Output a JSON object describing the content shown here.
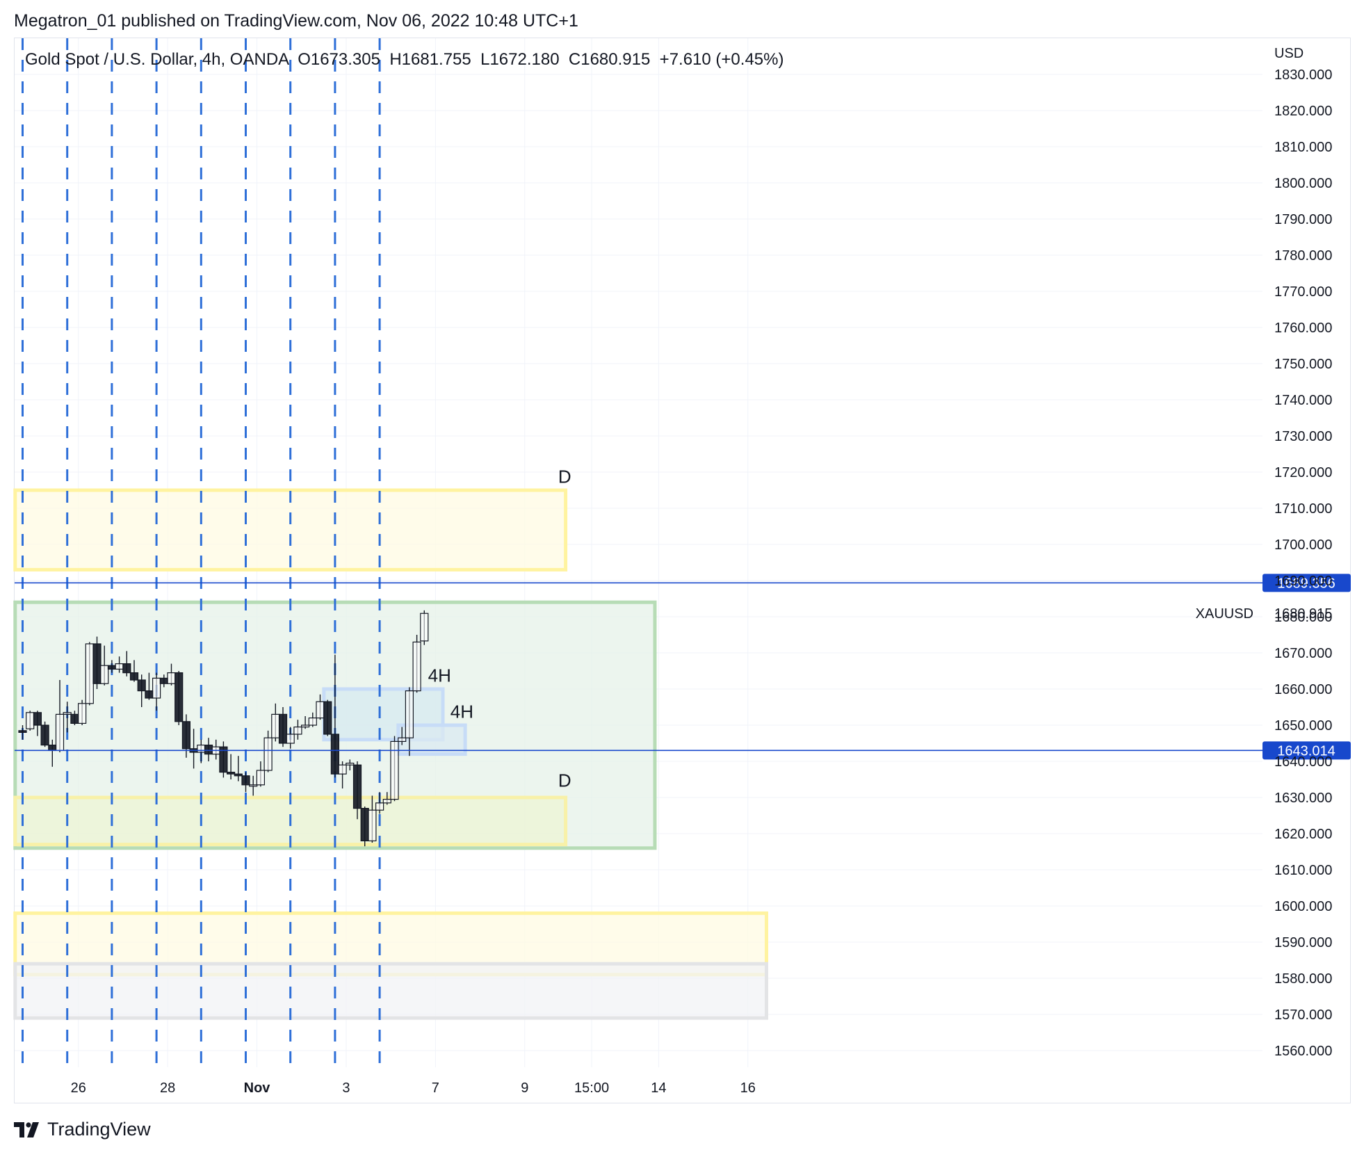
{
  "header": {
    "publisher": "Megatron_01 published on TradingView.com, Nov 06, 2022 10:48 UTC+1"
  },
  "legend": {
    "symbol": "Gold Spot / U.S. Dollar, 4h, OANDA",
    "open": "O1673.305",
    "high": "H1681.755",
    "low": "L1672.180",
    "close": "C1680.915",
    "change": "+7.610 (+0.45%)"
  },
  "footer": {
    "brand": "TradingView"
  },
  "chart_data": {
    "type": "candlestick",
    "currency": "USD",
    "ylim": [
      1555,
      1833
    ],
    "y_ticks": [
      "1830.000",
      "1820.000",
      "1810.000",
      "1800.000",
      "1790.000",
      "1780.000",
      "1770.000",
      "1760.000",
      "1750.000",
      "1740.000",
      "1730.000",
      "1720.000",
      "1710.000",
      "1700.000",
      "1690.000",
      "1680.000",
      "1670.000",
      "1660.000",
      "1650.000",
      "1640.000",
      "1630.000",
      "1620.000",
      "1610.000",
      "1600.000",
      "1590.000",
      "1580.000",
      "1570.000",
      "1560.000"
    ],
    "x_ticks": [
      {
        "label": "26",
        "bar": 7.5,
        "bold": false
      },
      {
        "label": "28",
        "bar": 19.5,
        "bold": false
      },
      {
        "label": "Nov",
        "bar": 31.5,
        "bold": true
      },
      {
        "label": "3",
        "bar": 43.5,
        "bold": false
      },
      {
        "label": "7",
        "bar": 55.5,
        "bold": false
      },
      {
        "label": "9",
        "bar": 67.5,
        "bold": false
      },
      {
        "label": "15:00",
        "bar": 76.5,
        "bold": false
      },
      {
        "label": "14",
        "bar": 85.5,
        "bold": false
      },
      {
        "label": "16",
        "bar": 97.5,
        "bold": false
      }
    ],
    "vertical_dashed_lines_at_bar": [
      0,
      6,
      12,
      18,
      24,
      30,
      36,
      42,
      48
    ],
    "price_lines": [
      {
        "value": 1689.356,
        "label": "1689.356",
        "color": "#1848cc"
      },
      {
        "value": 1643.014,
        "label": "1643.014",
        "color": "#1848cc"
      }
    ],
    "last_price": {
      "value": 1680.915,
      "label": "1680.915",
      "symbol": "XAUUSD"
    },
    "zones": [
      {
        "kind": "supply-D",
        "from_bar": -1,
        "to_bar": 73,
        "top": 1715,
        "bottom": 1693,
        "fill": "#fffbe3",
        "stroke": "#fff3a0",
        "label": "D",
        "label_bar": 72,
        "label_value": 1717
      },
      {
        "kind": "range",
        "from_bar": -1,
        "to_bar": 85,
        "top": 1684,
        "bottom": 1616,
        "fill": "#e6f2e8",
        "stroke": "#b7dcb6",
        "label": "",
        "label_bar": 0,
        "label_value": 0
      },
      {
        "kind": "demand-D",
        "from_bar": -1,
        "to_bar": 73,
        "top": 1630,
        "bottom": 1617,
        "fill": "#eef4d4",
        "stroke": "#f8f1a8",
        "label": "D",
        "label_bar": 72,
        "label_value": 1633
      },
      {
        "kind": "4H-1",
        "from_bar": 40.5,
        "to_bar": 56.5,
        "top": 1660,
        "bottom": 1646,
        "fill": "#d7e9f0",
        "stroke": "#c7dcf7",
        "label": "4H",
        "label_bar": 54.5,
        "label_value": 1662
      },
      {
        "kind": "4H-2",
        "from_bar": 50.5,
        "to_bar": 59.5,
        "top": 1650,
        "bottom": 1642,
        "fill": "#dbe9f1",
        "stroke": "#c7dcf7",
        "label": "4H",
        "label_bar": 57.5,
        "label_value": 1652
      },
      {
        "kind": "lower-yellow",
        "from_bar": -1,
        "to_bar": 100,
        "top": 1598,
        "bottom": 1581,
        "fill": "#fffbe3",
        "stroke": "#fff3a0",
        "label": "",
        "label_bar": 0,
        "label_value": 0
      },
      {
        "kind": "lower-gray",
        "from_bar": -1,
        "to_bar": 100,
        "top": 1584,
        "bottom": 1569,
        "fill": "#f2f3f5",
        "stroke": "#e3e4e6",
        "label": "",
        "label_bar": 0,
        "label_value": 0
      }
    ],
    "candles": [
      {
        "o": 1648.5,
        "h": 1650.0,
        "l": 1646.0,
        "c": 1648.0
      },
      {
        "o": 1649.0,
        "h": 1654.0,
        "l": 1648.5,
        "c": 1653.5
      },
      {
        "o": 1653.5,
        "h": 1654.0,
        "l": 1647.0,
        "c": 1650.0
      },
      {
        "o": 1650.0,
        "h": 1651.0,
        "l": 1644.0,
        "c": 1644.5
      },
      {
        "o": 1644.5,
        "h": 1646.0,
        "l": 1638.5,
        "c": 1643.0
      },
      {
        "o": 1643.0,
        "h": 1662.5,
        "l": 1642.5,
        "c": 1653.0
      },
      {
        "o": 1653.0,
        "h": 1656.5,
        "l": 1648.0,
        "c": 1653.5
      },
      {
        "o": 1653.0,
        "h": 1654.0,
        "l": 1650.0,
        "c": 1650.5
      },
      {
        "o": 1650.5,
        "h": 1657.0,
        "l": 1650.0,
        "c": 1656.0
      },
      {
        "o": 1656.0,
        "h": 1673.0,
        "l": 1655.5,
        "c": 1672.5
      },
      {
        "o": 1672.5,
        "h": 1674.5,
        "l": 1660.0,
        "c": 1661.5
      },
      {
        "o": 1661.5,
        "h": 1672.0,
        "l": 1661.0,
        "c": 1666.5
      },
      {
        "o": 1666.5,
        "h": 1668.0,
        "l": 1664.5,
        "c": 1665.5
      },
      {
        "o": 1665.5,
        "h": 1669.0,
        "l": 1664.5,
        "c": 1667.0
      },
      {
        "o": 1667.0,
        "h": 1670.5,
        "l": 1663.5,
        "c": 1664.5
      },
      {
        "o": 1664.5,
        "h": 1668.0,
        "l": 1662.0,
        "c": 1662.5
      },
      {
        "o": 1662.5,
        "h": 1664.0,
        "l": 1655.0,
        "c": 1659.5
      },
      {
        "o": 1659.5,
        "h": 1664.5,
        "l": 1657.0,
        "c": 1657.5
      },
      {
        "o": 1657.5,
        "h": 1664.5,
        "l": 1654.0,
        "c": 1663.0
      },
      {
        "o": 1663.0,
        "h": 1664.0,
        "l": 1660.5,
        "c": 1661.5
      },
      {
        "o": 1661.5,
        "h": 1667.0,
        "l": 1661.0,
        "c": 1664.5
      },
      {
        "o": 1664.5,
        "h": 1665.0,
        "l": 1650.0,
        "c": 1651.0
      },
      {
        "o": 1651.0,
        "h": 1653.0,
        "l": 1641.0,
        "c": 1643.5
      },
      {
        "o": 1643.5,
        "h": 1649.0,
        "l": 1638.0,
        "c": 1642.5
      },
      {
        "o": 1642.5,
        "h": 1646.0,
        "l": 1639.5,
        "c": 1644.5
      },
      {
        "o": 1644.5,
        "h": 1646.5,
        "l": 1640.0,
        "c": 1642.0
      },
      {
        "o": 1642.0,
        "h": 1646.0,
        "l": 1640.5,
        "c": 1644.0
      },
      {
        "o": 1644.0,
        "h": 1645.5,
        "l": 1635.5,
        "c": 1637.0
      },
      {
        "o": 1637.0,
        "h": 1642.0,
        "l": 1635.0,
        "c": 1636.5
      },
      {
        "o": 1636.5,
        "h": 1641.5,
        "l": 1634.5,
        "c": 1636.0
      },
      {
        "o": 1636.0,
        "h": 1637.0,
        "l": 1631.5,
        "c": 1633.5
      },
      {
        "o": 1633.5,
        "h": 1636.0,
        "l": 1630.5,
        "c": 1633.5
      },
      {
        "o": 1633.5,
        "h": 1640.0,
        "l": 1633.0,
        "c": 1637.5
      },
      {
        "o": 1637.5,
        "h": 1648.5,
        "l": 1637.0,
        "c": 1646.5
      },
      {
        "o": 1646.5,
        "h": 1656.0,
        "l": 1645.5,
        "c": 1653.0
      },
      {
        "o": 1653.0,
        "h": 1655.0,
        "l": 1644.0,
        "c": 1645.0
      },
      {
        "o": 1645.0,
        "h": 1649.5,
        "l": 1643.5,
        "c": 1647.5
      },
      {
        "o": 1647.5,
        "h": 1651.5,
        "l": 1646.0,
        "c": 1649.5
      },
      {
        "o": 1649.5,
        "h": 1652.5,
        "l": 1649.0,
        "c": 1650.0
      },
      {
        "o": 1650.0,
        "h": 1653.5,
        "l": 1649.5,
        "c": 1652.0
      },
      {
        "o": 1652.0,
        "h": 1658.5,
        "l": 1651.5,
        "c": 1656.5
      },
      {
        "o": 1656.5,
        "h": 1657.0,
        "l": 1647.0,
        "c": 1647.5
      },
      {
        "o": 1647.5,
        "h": 1669.5,
        "l": 1635.5,
        "c": 1636.5
      },
      {
        "o": 1636.5,
        "h": 1640.0,
        "l": 1632.5,
        "c": 1639.0
      },
      {
        "o": 1639.0,
        "h": 1640.5,
        "l": 1637.5,
        "c": 1639.5
      },
      {
        "o": 1639.0,
        "h": 1640.0,
        "l": 1624.0,
        "c": 1627.0
      },
      {
        "o": 1627.0,
        "h": 1627.5,
        "l": 1616.5,
        "c": 1618.0
      },
      {
        "o": 1618.0,
        "h": 1630.5,
        "l": 1617.5,
        "c": 1626.5
      },
      {
        "o": 1626.5,
        "h": 1631.5,
        "l": 1625.5,
        "c": 1628.5
      },
      {
        "o": 1628.5,
        "h": 1631.5,
        "l": 1628.0,
        "c": 1629.5
      },
      {
        "o": 1629.5,
        "h": 1647.0,
        "l": 1629.0,
        "c": 1645.5
      },
      {
        "o": 1645.5,
        "h": 1649.5,
        "l": 1644.5,
        "c": 1646.5
      },
      {
        "o": 1646.5,
        "h": 1660.5,
        "l": 1641.5,
        "c": 1659.5
      },
      {
        "o": 1659.5,
        "h": 1675.0,
        "l": 1659.0,
        "c": 1673.0
      },
      {
        "o": 1673.3,
        "h": 1681.755,
        "l": 1672.18,
        "c": 1680.915
      }
    ]
  }
}
